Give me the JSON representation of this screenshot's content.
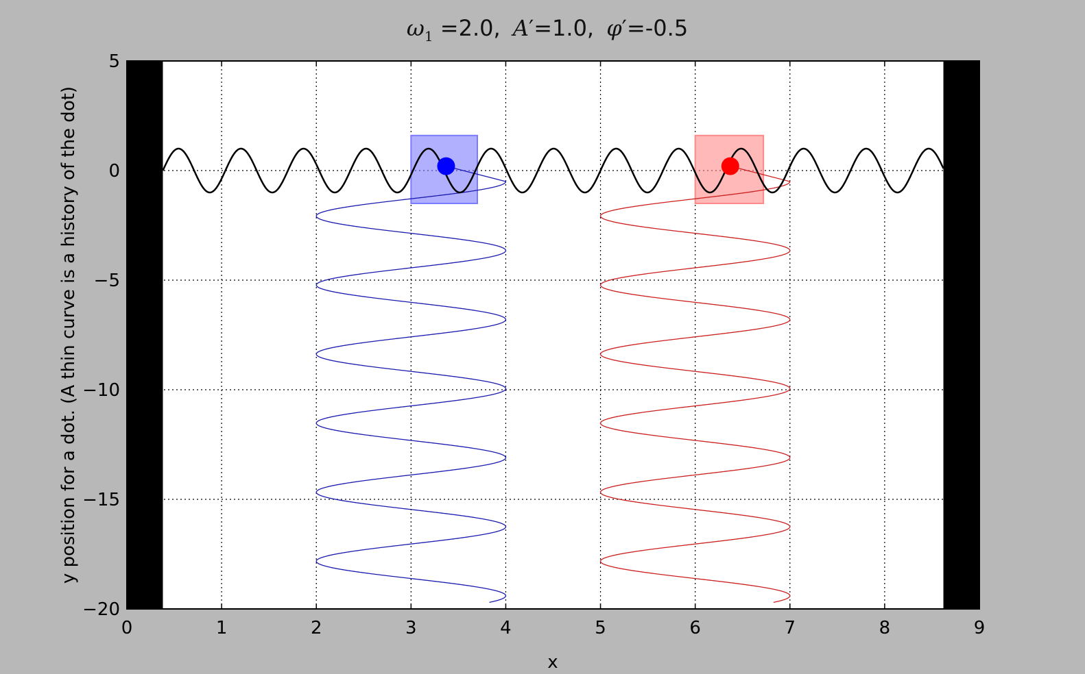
{
  "chart_data": {
    "type": "line",
    "title": "ω₁ =2.0, A′=1.0, φ′=-0.5",
    "title_parts": {
      "omega": "ω",
      "omega_sub": "1",
      "omega_value": " =2.0,",
      "amp": "A",
      "amp_value": "′=1.0,",
      "phi": "φ",
      "phi_value": "′=-0.5"
    },
    "xlabel": "x",
    "ylabel": "y position for a dot. (A thin curve is a history of the dot)",
    "xlim": [
      0,
      9
    ],
    "ylim": [
      -20,
      5
    ],
    "xticks": [
      0,
      1,
      2,
      3,
      4,
      5,
      6,
      7,
      8,
      9
    ],
    "yticks": [
      5,
      0,
      -5,
      -10,
      -15,
      -20
    ],
    "ytick_labels": [
      "5",
      "0",
      "−5",
      "−10",
      "−15",
      "−20"
    ],
    "grid": true,
    "walls": [
      {
        "x0": 0,
        "x1": 0.38,
        "color": "#000000"
      },
      {
        "x0": 8.62,
        "x1": 9,
        "color": "#000000"
      }
    ],
    "wave": {
      "name": "wave",
      "x_range": [
        0.38,
        8.62
      ],
      "amplitude": 1.0,
      "period": 0.66,
      "phase": 0.5,
      "color": "#000000"
    },
    "masses": [
      {
        "name": "blue",
        "color": "#0000ff",
        "box_color": "#7b7bff",
        "box_x": [
          3.0,
          3.7
        ],
        "box_y": [
          -1.5,
          1.6
        ],
        "dot": [
          3.37,
          0.2
        ],
        "history": {
          "center": 3.0,
          "amplitude": 1.0,
          "y_start": 0.2,
          "y_end": -19.7,
          "period_y": 3.15,
          "peak_y": -0.5
        }
      },
      {
        "name": "red",
        "color": "#ff0000",
        "box_color": "#ff8a8a",
        "box_x": [
          6.0,
          6.72
        ],
        "box_y": [
          -1.5,
          1.6
        ],
        "dot": [
          6.37,
          0.2
        ],
        "history": {
          "center": 6.0,
          "amplitude": 1.0,
          "y_start": 0.2,
          "y_end": -19.7,
          "period_y": 3.15,
          "peak_y": -0.5
        }
      }
    ]
  }
}
